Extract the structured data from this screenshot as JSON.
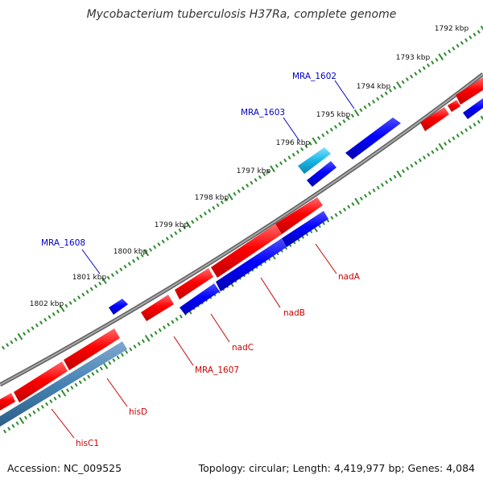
{
  "title": "Mycobacterium tuberculosis H37Ra, complete genome",
  "footer": {
    "accession": "Accession: NC_009525",
    "summary": "Topology: circular; Length: 4,419,977 bp; Genes: 4,084"
  },
  "colors": {
    "backbone": "#808080",
    "forward_gene": "#ff0000",
    "reverse_gene": "#0000ff",
    "highlight_gene": "#19b7e6",
    "pseudo_gene": "#4682b4",
    "outer_ticks": "#2e8b2e",
    "inner_ticks": "#2e8b2e",
    "label_blue": "#0000cc",
    "label_red": "#cc0000"
  },
  "ruler": [
    {
      "label": "1792 kbp",
      "pos": 0.0
    },
    {
      "label": "1793 kbp",
      "pos": 1.0
    },
    {
      "label": "1794 kbp",
      "pos": 2.0
    },
    {
      "label": "1795 kbp",
      "pos": 3.0
    },
    {
      "label": "1796 kbp",
      "pos": 4.0
    },
    {
      "label": "1797 kbp",
      "pos": 5.0
    },
    {
      "label": "1798 kbp",
      "pos": 6.0
    },
    {
      "label": "1799 kbp",
      "pos": 7.0
    },
    {
      "label": "1800 kbp",
      "pos": 8.0
    },
    {
      "label": "1801 kbp",
      "pos": 9.0
    },
    {
      "label": "1802 kbp",
      "pos": 10.0
    }
  ],
  "genes": [
    {
      "label": "MRA_1602",
      "strand": "fwd",
      "color": "reverse_gene"
    },
    {
      "label": "MRA_1603",
      "strand": "fwd",
      "color": "highlight_gene"
    },
    {
      "label": "MRA_1608",
      "strand": "fwd",
      "color": "reverse_gene"
    },
    {
      "label": "nadA",
      "strand": "rev",
      "color": "forward_gene"
    },
    {
      "label": "nadB",
      "strand": "rev",
      "color": "reverse_gene"
    },
    {
      "label": "nadC",
      "strand": "rev",
      "color": "forward_gene"
    },
    {
      "label": "MRA_1607",
      "strand": "rev",
      "color": "forward_gene"
    },
    {
      "label": "hisD",
      "strand": "rev",
      "color": "forward_gene"
    },
    {
      "label": "hisC1",
      "strand": "rev",
      "color": "pseudo_gene"
    }
  ]
}
